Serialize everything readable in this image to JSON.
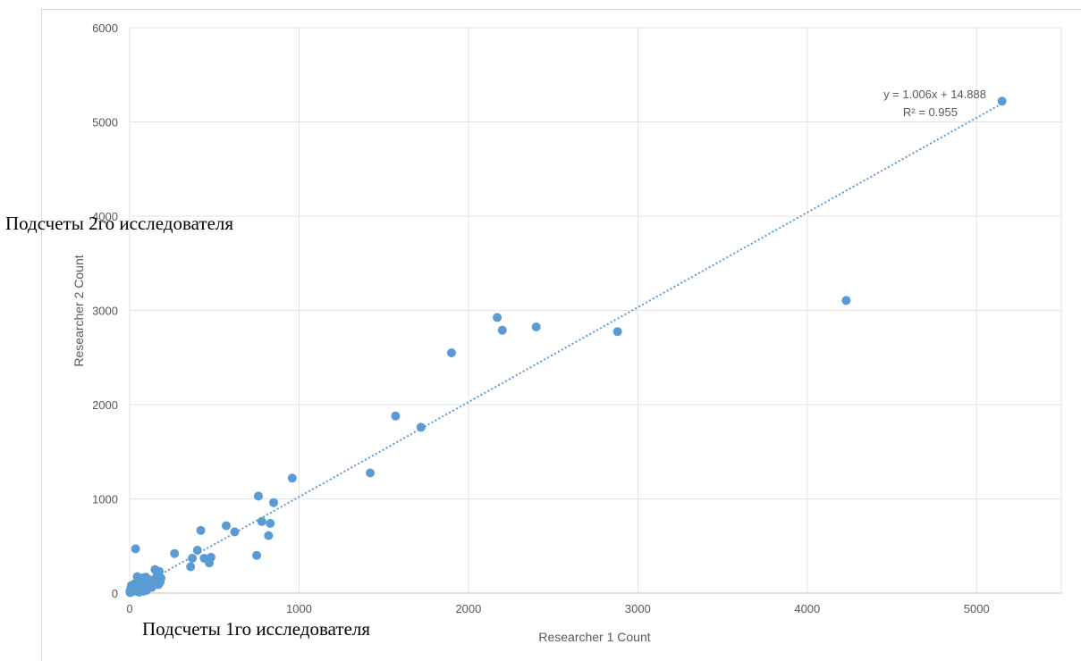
{
  "chart_data": {
    "type": "scatter",
    "xlabel": "Researcher 1 Count",
    "ylabel": "Researcher 2 Count",
    "xlim": [
      0,
      5500
    ],
    "ylim": [
      0,
      6000
    ],
    "x_ticks": [
      0,
      1000,
      2000,
      3000,
      4000,
      5000
    ],
    "y_ticks": [
      0,
      1000,
      2000,
      3000,
      4000,
      5000,
      6000
    ],
    "grid": true,
    "point_color": "#5b9bd5",
    "trendline": {
      "type": "linear",
      "slope": 1.006,
      "intercept": 14.888,
      "equation_label": "y = 1.006x + 14.888",
      "r2_label": "R² = 0.955",
      "style": "dotted",
      "color": "#5b9bd5"
    },
    "points": [
      [
        5150,
        5220
      ],
      [
        4230,
        3105
      ],
      [
        2880,
        2775
      ],
      [
        2400,
        2825
      ],
      [
        2200,
        2790
      ],
      [
        2170,
        2925
      ],
      [
        1900,
        2550
      ],
      [
        1720,
        1760
      ],
      [
        1570,
        1880
      ],
      [
        1420,
        1275
      ],
      [
        960,
        1220
      ],
      [
        850,
        960
      ],
      [
        830,
        740
      ],
      [
        820,
        610
      ],
      [
        780,
        760
      ],
      [
        760,
        1030
      ],
      [
        750,
        400
      ],
      [
        620,
        650
      ],
      [
        570,
        715
      ],
      [
        480,
        380
      ],
      [
        470,
        320
      ],
      [
        440,
        370
      ],
      [
        420,
        665
      ],
      [
        400,
        455
      ],
      [
        370,
        370
      ],
      [
        360,
        280
      ],
      [
        265,
        420
      ],
      [
        185,
        160
      ],
      [
        180,
        120
      ],
      [
        175,
        230
      ],
      [
        170,
        90
      ],
      [
        160,
        180
      ],
      [
        150,
        250
      ],
      [
        140,
        130
      ],
      [
        130,
        60
      ],
      [
        120,
        140
      ],
      [
        110,
        100
      ],
      [
        100,
        30
      ],
      [
        95,
        170
      ],
      [
        90,
        70
      ],
      [
        85,
        130
      ],
      [
        80,
        20
      ],
      [
        75,
        160
      ],
      [
        70,
        100
      ],
      [
        65,
        50
      ],
      [
        60,
        130
      ],
      [
        55,
        10
      ],
      [
        50,
        80
      ],
      [
        45,
        175
      ],
      [
        40,
        40
      ],
      [
        35,
        470
      ],
      [
        30,
        100
      ],
      [
        25,
        20
      ],
      [
        20,
        60
      ],
      [
        15,
        30
      ],
      [
        10,
        80
      ],
      [
        8,
        10
      ],
      [
        5,
        40
      ],
      [
        3,
        5
      ],
      [
        2,
        20
      ]
    ]
  },
  "annotations": {
    "y_ru_label": "Подсчеты 2го исследователя",
    "x_ru_label": "Подсчеты 1го исследователя"
  }
}
